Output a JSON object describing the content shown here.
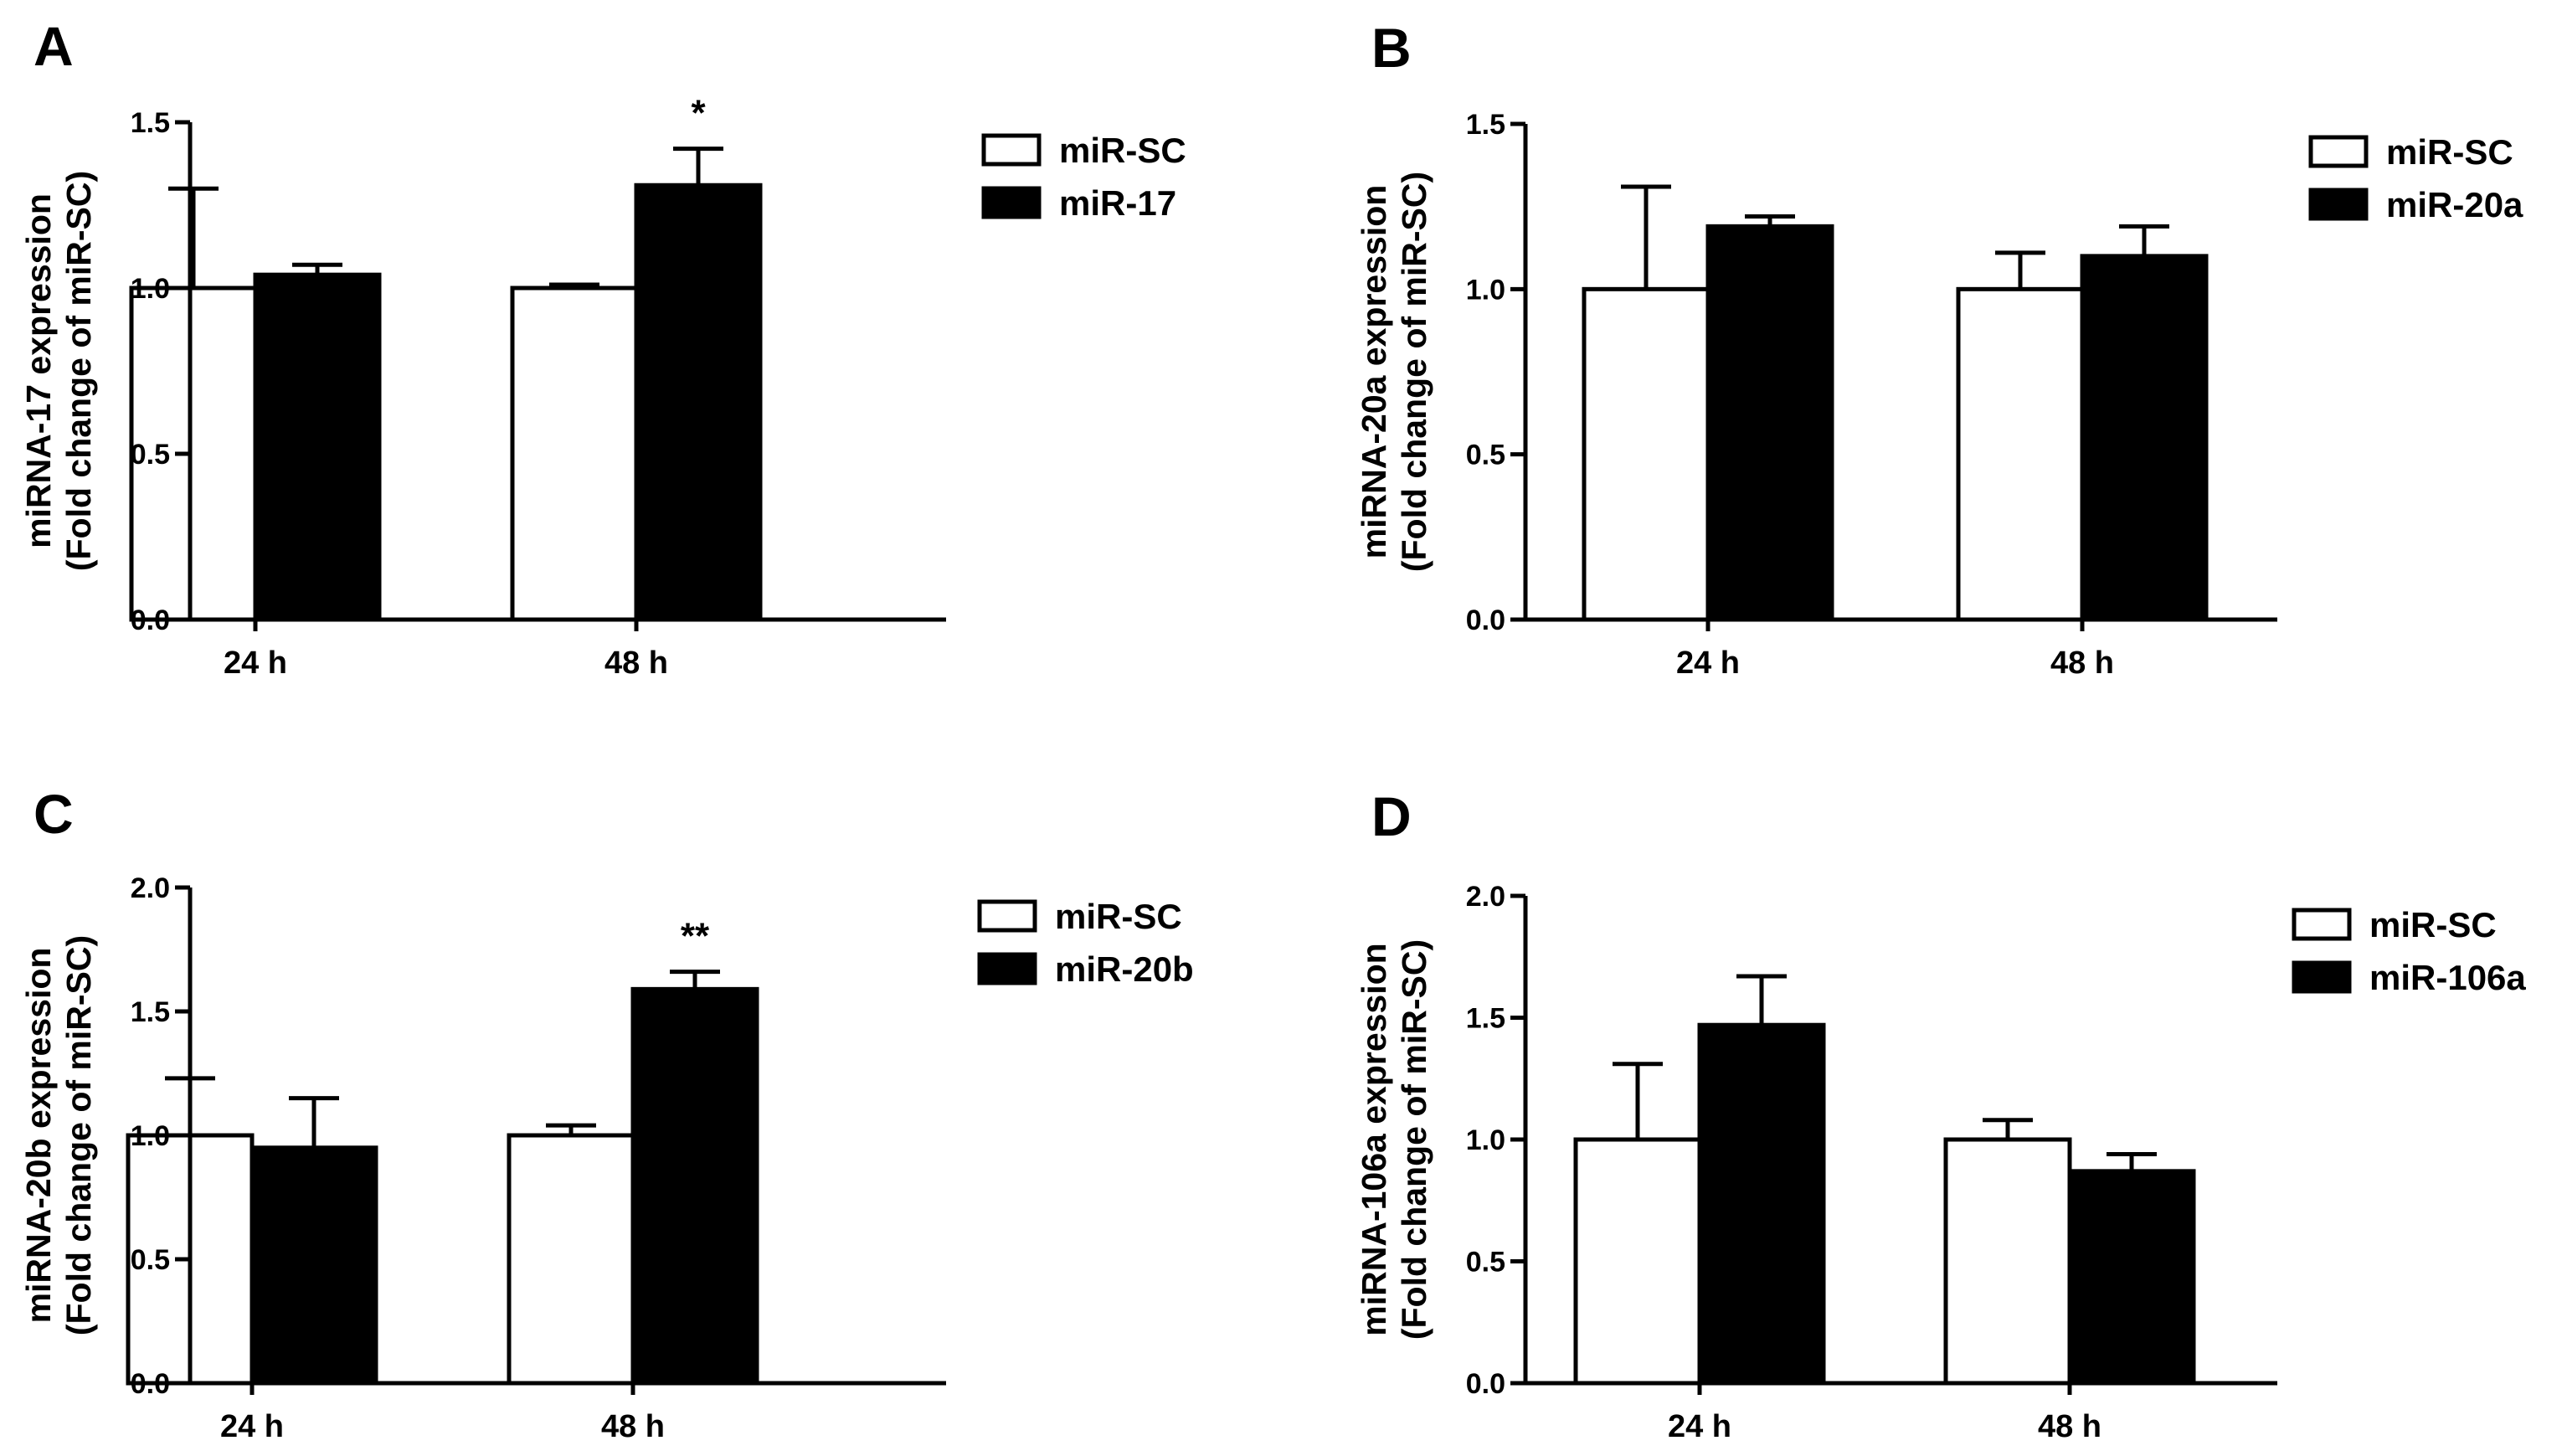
{
  "figure": {
    "panels": [
      "A",
      "B",
      "C",
      "D"
    ]
  },
  "colors": {
    "control": "#ffffff",
    "treatment": "#000000",
    "axis": "#000000"
  },
  "chart_data": [
    {
      "panel": "A",
      "type": "bar",
      "categories": [
        "24 h",
        "48 h"
      ],
      "series": [
        {
          "name": "miR-SC",
          "values": [
            1.0,
            1.0
          ],
          "errors": [
            0.3,
            0.01
          ],
          "fill": "#ffffff"
        },
        {
          "name": "miR-17",
          "values": [
            1.04,
            1.31
          ],
          "errors": [
            0.03,
            0.11
          ],
          "fill": "#000000"
        }
      ],
      "ylabel_lines": [
        "miRNA-17 expression",
        "(Fold change of miR-SC)"
      ],
      "ylim": [
        0,
        1.5
      ],
      "yticks": [
        0.0,
        0.5,
        1.0,
        1.5
      ],
      "ytick_labels": [
        "0.0",
        "0.5",
        "1.0",
        "1.5"
      ],
      "legend": [
        "miR-SC",
        "miR-17"
      ],
      "annotations": [
        {
          "text": "*",
          "category": 1,
          "series": 1
        }
      ]
    },
    {
      "panel": "B",
      "type": "bar",
      "categories": [
        "24 h",
        "48 h"
      ],
      "series": [
        {
          "name": "miR-SC",
          "values": [
            1.0,
            1.0
          ],
          "errors": [
            0.31,
            0.11
          ],
          "fill": "#ffffff"
        },
        {
          "name": "miR-20a",
          "values": [
            1.19,
            1.1
          ],
          "errors": [
            0.03,
            0.09
          ],
          "fill": "#000000"
        }
      ],
      "ylabel_lines": [
        "miRNA-20a expression",
        "(Fold change of miR-SC)"
      ],
      "ylim": [
        0,
        1.5
      ],
      "yticks": [
        0.0,
        0.5,
        1.0,
        1.5
      ],
      "ytick_labels": [
        "0.0",
        "0.5",
        "1.0",
        "1.5"
      ],
      "legend": [
        "miR-SC",
        "miR-20a"
      ],
      "annotations": []
    },
    {
      "panel": "C",
      "type": "bar",
      "categories": [
        "24 h",
        "48 h"
      ],
      "series": [
        {
          "name": "miR-SC",
          "values": [
            1.0,
            1.0
          ],
          "errors": [
            0.23,
            0.04
          ],
          "fill": "#ffffff"
        },
        {
          "name": "miR-20b",
          "values": [
            0.95,
            1.59
          ],
          "errors": [
            0.2,
            0.07
          ],
          "fill": "#000000"
        }
      ],
      "ylabel_lines": [
        "miRNA-20b expression",
        "(Fold change of miR-SC)"
      ],
      "ylim": [
        0,
        2.0
      ],
      "yticks": [
        0.0,
        0.5,
        1.0,
        1.5,
        2.0
      ],
      "ytick_labels": [
        "0.0",
        "0.5",
        "1.0",
        "1.5",
        "2.0"
      ],
      "legend": [
        "miR-SC",
        "miR-20b"
      ],
      "annotations": [
        {
          "text": "**",
          "category": 1,
          "series": 1
        }
      ]
    },
    {
      "panel": "D",
      "type": "bar",
      "categories": [
        "24 h",
        "48 h"
      ],
      "series": [
        {
          "name": "miR-SC",
          "values": [
            1.0,
            1.0
          ],
          "errors": [
            0.31,
            0.08
          ],
          "fill": "#ffffff"
        },
        {
          "name": "miR-106a",
          "values": [
            1.47,
            0.87
          ],
          "errors": [
            0.2,
            0.07
          ],
          "fill": "#000000"
        }
      ],
      "ylabel_lines": [
        "miRNA-106a expression",
        "(Fold change of miR-SC)"
      ],
      "ylim": [
        0,
        2.0
      ],
      "yticks": [
        0.0,
        0.5,
        1.0,
        1.5,
        2.0
      ],
      "ytick_labels": [
        "0.0",
        "0.5",
        "1.0",
        "1.5",
        "2.0"
      ],
      "legend": [
        "miR-SC",
        "miR-106a"
      ],
      "annotations": []
    }
  ]
}
